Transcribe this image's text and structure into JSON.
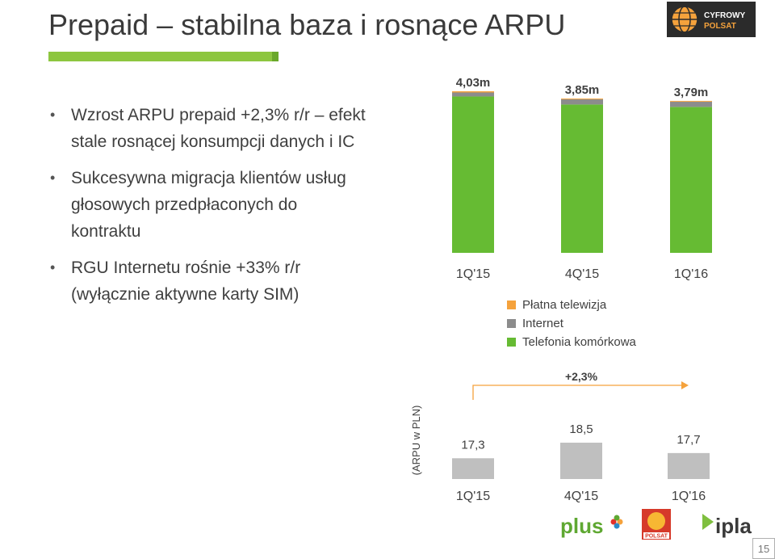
{
  "slide": {
    "title": "Prepaid – stabilna baza i rosnące ARPU",
    "page_number": "15"
  },
  "logo_top": {
    "line1": "CYFROWY",
    "line2": "POLSAT",
    "icon": "globe-icon"
  },
  "bullets": [
    "Wzrost ARPU prepaid +2,3% r/r – efekt stale rosnącej konsumpcji danych i IC",
    "Sukcesywna migracja klientów usług głosowych przedpłaconych do kontraktu",
    "RGU Internetu rośnie +33% r/r (wyłącznie aktywne karty SIM)"
  ],
  "chart_data": [
    {
      "type": "bar",
      "stacked": true,
      "categories": [
        "1Q'15",
        "4Q'15",
        "1Q'16"
      ],
      "totals": [
        "4,03m",
        "3,85m",
        "3,79m"
      ],
      "total_values": [
        4.03,
        3.85,
        3.79
      ],
      "series": [
        {
          "name": "Telefonia komórkowa",
          "color": "#66bb33",
          "values": [
            3.9,
            3.7,
            3.64
          ]
        },
        {
          "name": "Internet",
          "color": "#8c8c8c",
          "values": [
            0.1,
            0.13,
            0.13
          ]
        },
        {
          "name": "Płatna telewizja",
          "color": "#f5a23c",
          "values": [
            0.03,
            0.02,
            0.02
          ]
        }
      ],
      "legend_order": [
        "Płatna telewizja",
        "Internet",
        "Telefonia komórkowa"
      ],
      "legend_position": "bottom-right",
      "grid": false
    },
    {
      "type": "bar",
      "categories": [
        "1Q'15",
        "4Q'15",
        "1Q'16"
      ],
      "values": [
        17.3,
        18.5,
        17.7
      ],
      "value_labels": [
        "17,3",
        "18,5",
        "17,7"
      ],
      "ylabel": "(ARPU w PLN)",
      "color": "#bfbfbf",
      "annotation": "+2,3%",
      "annotation_color": "#f5a23c",
      "grid": false
    }
  ],
  "brands": [
    "plus",
    "POLSAT",
    "ipla"
  ]
}
